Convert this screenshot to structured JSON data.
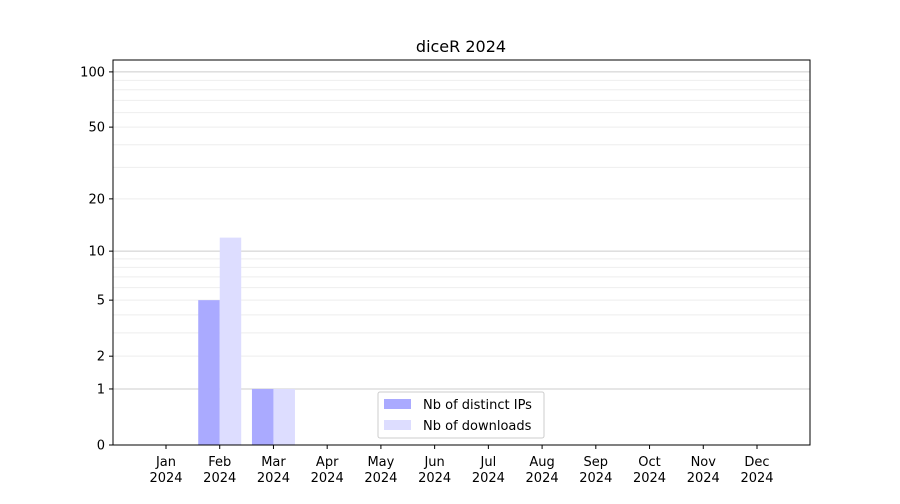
{
  "chart_data": {
    "type": "bar",
    "title": "diceR 2024",
    "xlabel": "",
    "ylabel": "",
    "yscale": "log(1+y)",
    "ylim": [
      0,
      116
    ],
    "yticks": [
      0,
      1,
      2,
      5,
      10,
      20,
      50,
      100
    ],
    "grid": true,
    "legend_position": "bottom-center",
    "categories": [
      "Jan\n2024",
      "Feb\n2024",
      "Mar\n2024",
      "Apr\n2024",
      "May\n2024",
      "Jun\n2024",
      "Jul\n2024",
      "Aug\n2024",
      "Sep\n2024",
      "Oct\n2024",
      "Nov\n2024",
      "Dec\n2024"
    ],
    "series": [
      {
        "name": "Nb of distinct IPs",
        "color": "#aaaaff",
        "values": [
          0,
          5,
          1,
          0,
          0,
          0,
          0,
          0,
          0,
          0,
          0,
          0
        ]
      },
      {
        "name": "Nb of downloads",
        "color": "#ddddff",
        "values": [
          0,
          12,
          1,
          0,
          0,
          0,
          0,
          0,
          0,
          0,
          0,
          0
        ]
      }
    ]
  }
}
